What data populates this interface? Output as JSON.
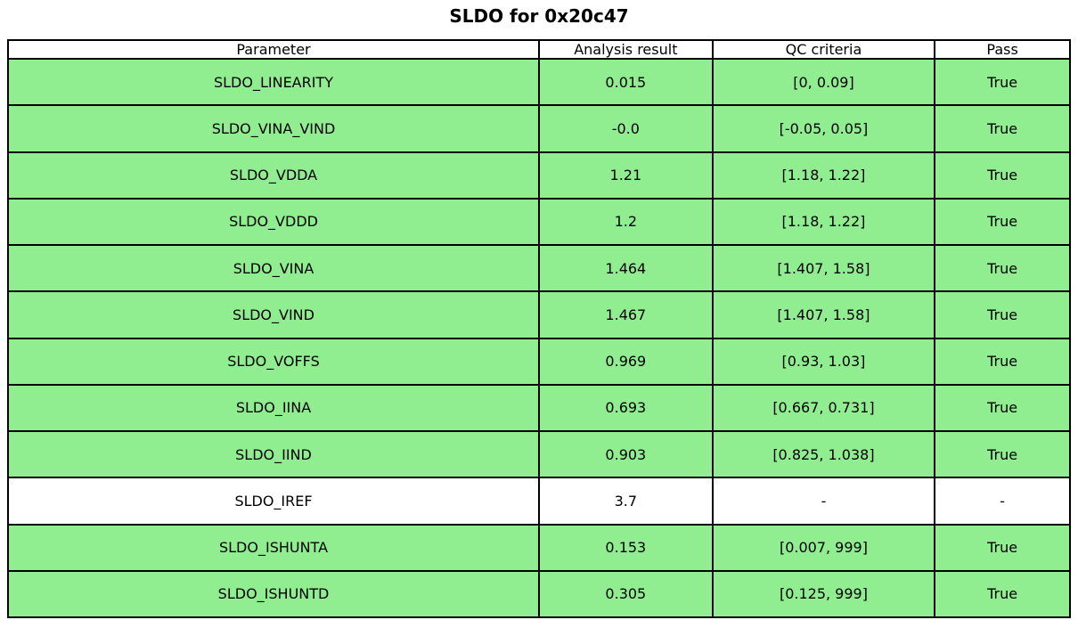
{
  "chart_data": {
    "type": "table",
    "title": "SLDO for 0x20c47",
    "columns": [
      "Parameter",
      "Analysis result",
      "QC criteria",
      "Pass"
    ],
    "rows": [
      {
        "cells": [
          "SLDO_LINEARITY",
          "0.015",
          "[0, 0.09]",
          "True"
        ],
        "bg": "#90EE90"
      },
      {
        "cells": [
          "SLDO_VINA_VIND",
          "-0.0",
          "[-0.05, 0.05]",
          "True"
        ],
        "bg": "#90EE90"
      },
      {
        "cells": [
          "SLDO_VDDA",
          "1.21",
          "[1.18, 1.22]",
          "True"
        ],
        "bg": "#90EE90"
      },
      {
        "cells": [
          "SLDO_VDDD",
          "1.2",
          "[1.18, 1.22]",
          "True"
        ],
        "bg": "#90EE90"
      },
      {
        "cells": [
          "SLDO_VINA",
          "1.464",
          "[1.407, 1.58]",
          "True"
        ],
        "bg": "#90EE90"
      },
      {
        "cells": [
          "SLDO_VIND",
          "1.467",
          "[1.407, 1.58]",
          "True"
        ],
        "bg": "#90EE90"
      },
      {
        "cells": [
          "SLDO_VOFFS",
          "0.969",
          "[0.93, 1.03]",
          "True"
        ],
        "bg": "#90EE90"
      },
      {
        "cells": [
          "SLDO_IINA",
          "0.693",
          "[0.667, 0.731]",
          "True"
        ],
        "bg": "#90EE90"
      },
      {
        "cells": [
          "SLDO_IIND",
          "0.903",
          "[0.825, 1.038]",
          "True"
        ],
        "bg": "#90EE90"
      },
      {
        "cells": [
          "SLDO_IREF",
          "3.7",
          "-",
          "-"
        ],
        "bg": "#FFFFFF"
      },
      {
        "cells": [
          "SLDO_ISHUNTA",
          "0.153",
          "[0.007, 999]",
          "True"
        ],
        "bg": "#90EE90"
      },
      {
        "cells": [
          "SLDO_ISHUNTD",
          "0.305",
          "[0.125, 999]",
          "True"
        ],
        "bg": "#90EE90"
      }
    ],
    "colors": {
      "pass_row": "#90EE90",
      "neutral_row": "#FFFFFF",
      "border": "#000000",
      "text": "#000000"
    },
    "layout": {
      "header_bg": "#FFFFFF",
      "grid": "on"
    }
  }
}
